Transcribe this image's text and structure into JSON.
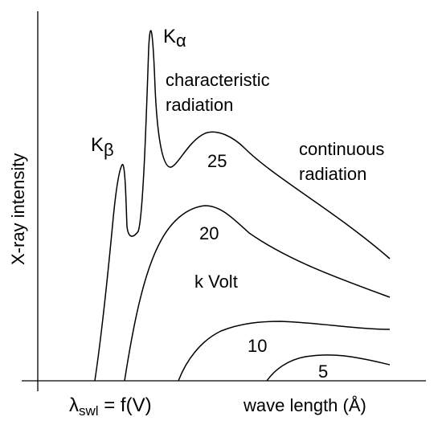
{
  "axes": {
    "y_label": "X-ray intensity",
    "x_label": "wave length (Å)",
    "swl_label": {
      "main": "λ",
      "sub": "swl",
      "rest": " = f(V)"
    }
  },
  "peaks": {
    "k_alpha": {
      "main": "K",
      "sub": "α"
    },
    "k_beta": {
      "main": "K",
      "sub": "β"
    }
  },
  "annotations": {
    "characteristic_line1": "characteristic",
    "characteristic_line2": "radiation",
    "continuous_line1": "continuous",
    "continuous_line2": "radiation",
    "unit": "k Volt"
  },
  "curves": [
    {
      "voltage": "25"
    },
    {
      "voltage": "20"
    },
    {
      "voltage": "10"
    },
    {
      "voltage": "5"
    }
  ]
}
